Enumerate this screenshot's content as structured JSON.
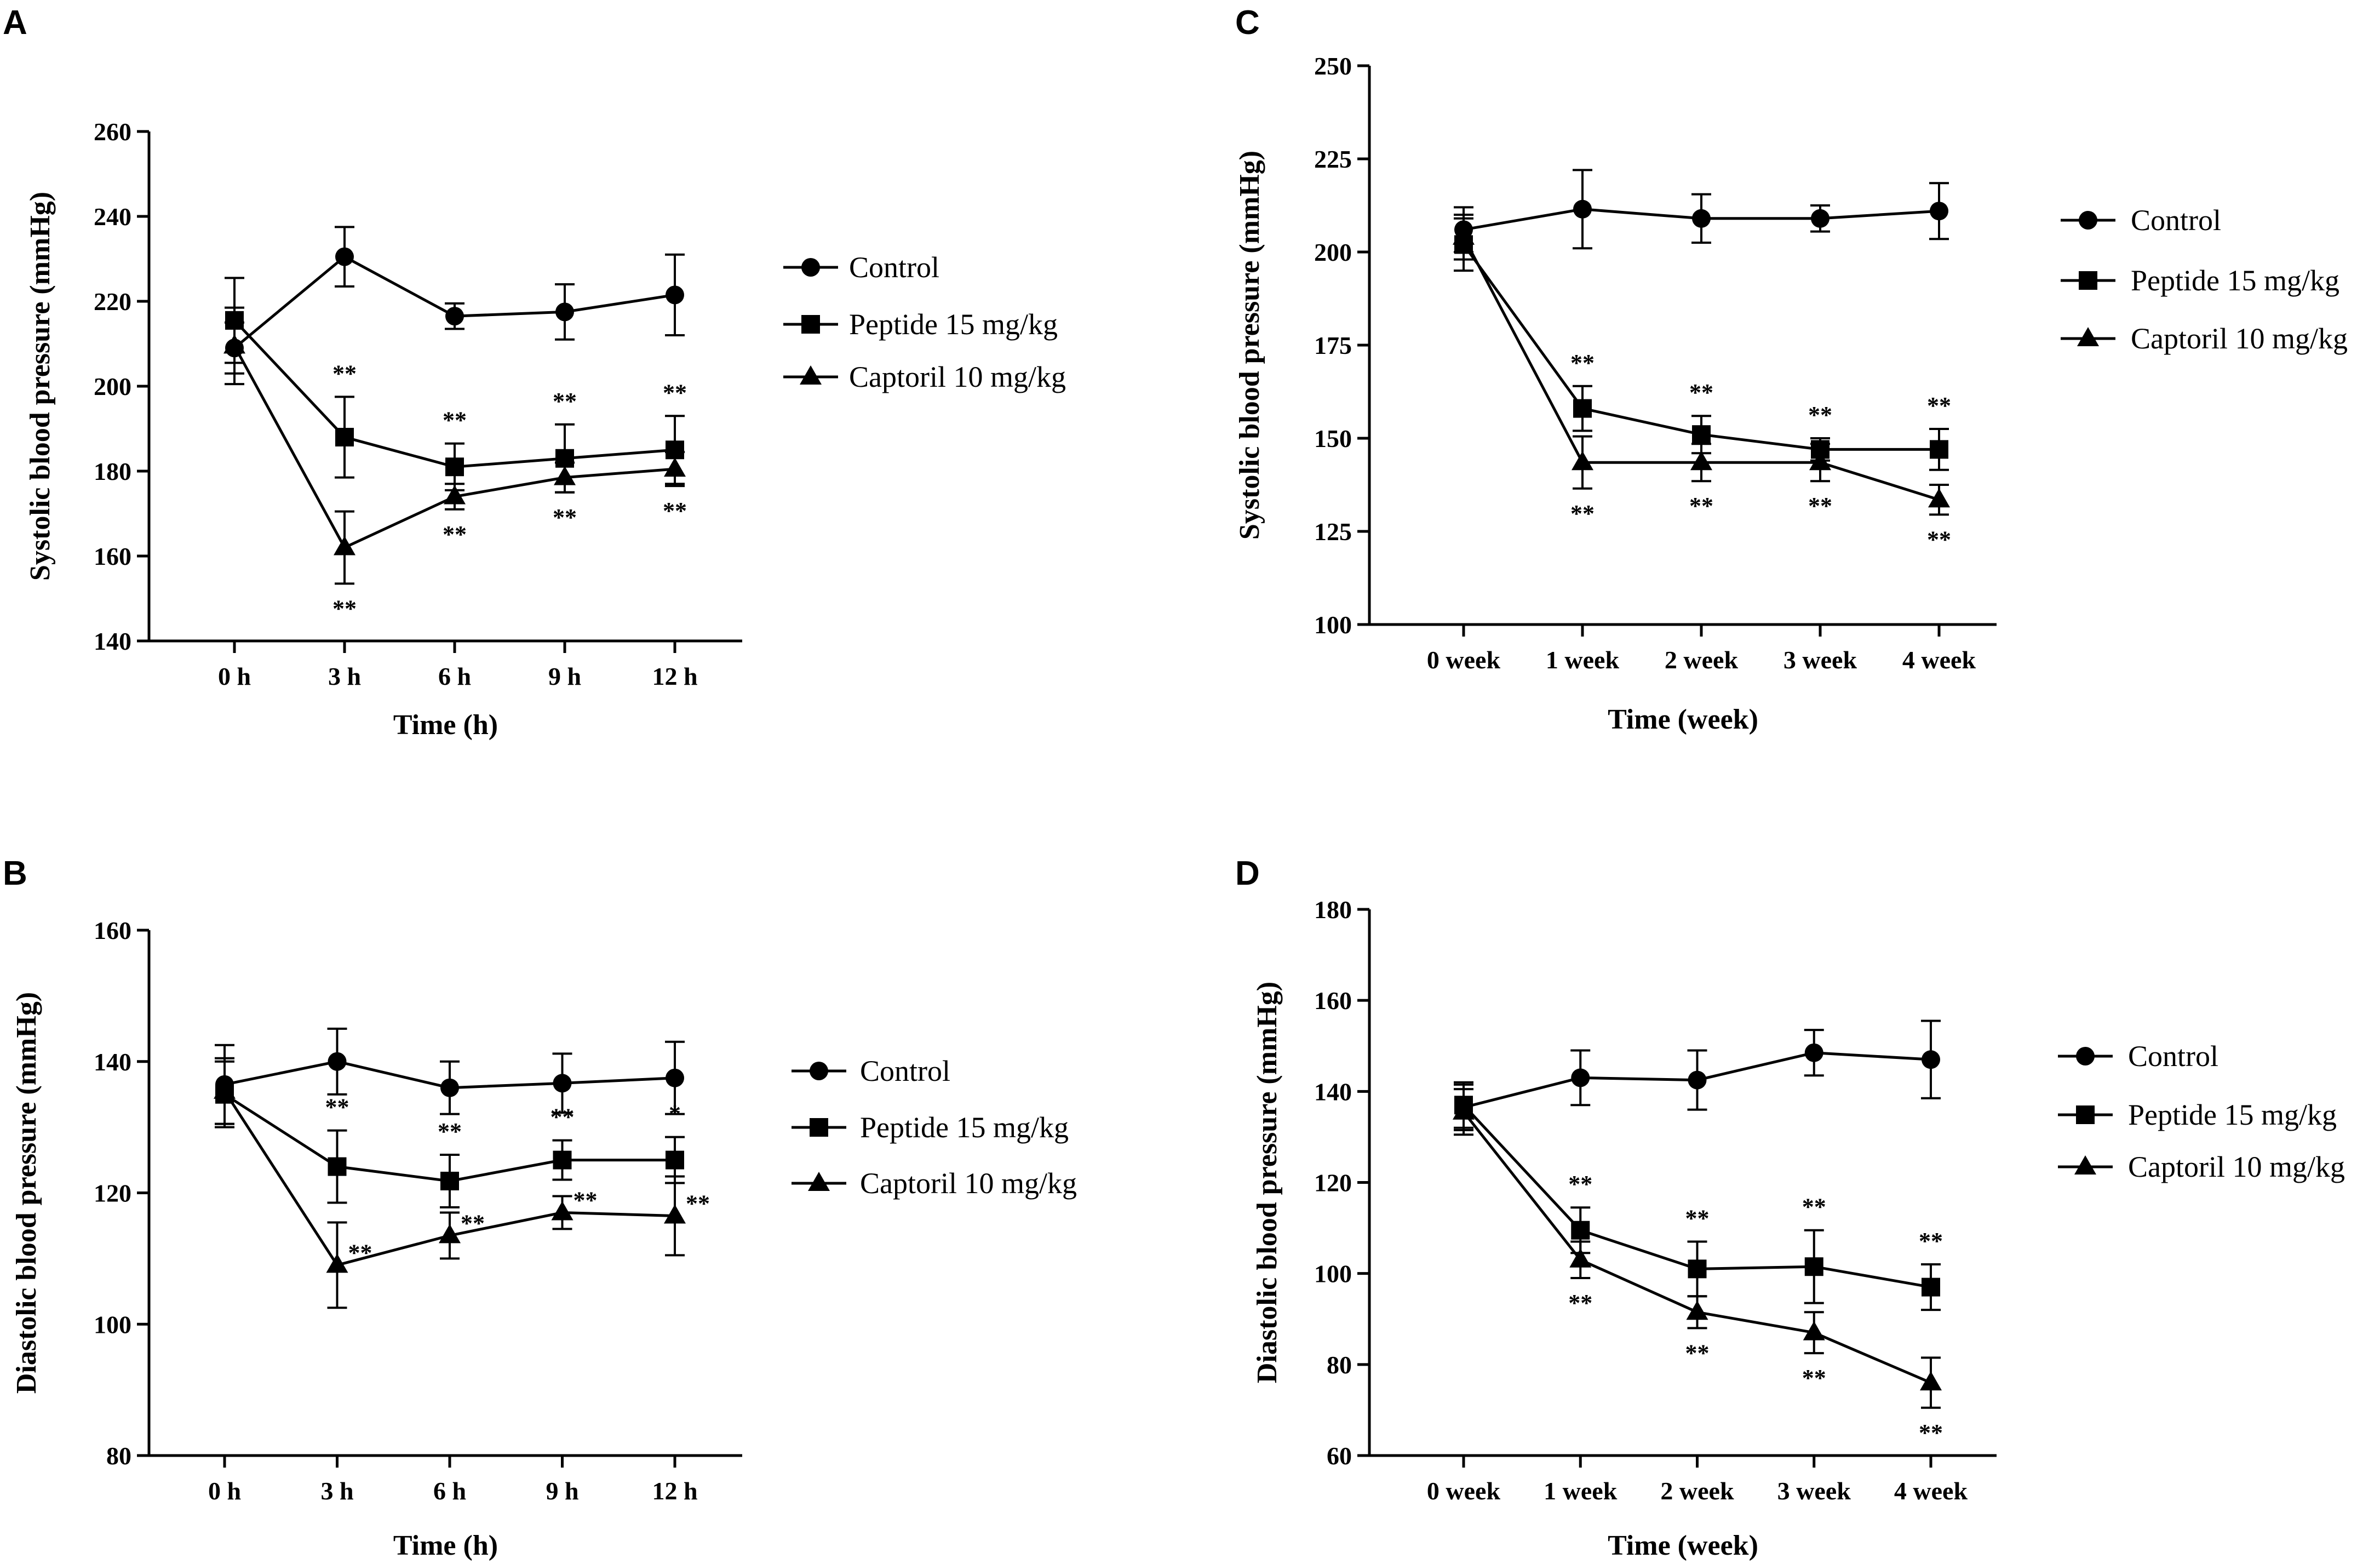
{
  "chart_data": [
    {
      "panel": "A",
      "type": "line",
      "xlabel": "Time (h)",
      "ylabel": "Systolic blood pressure  (mmHg)",
      "categories": [
        "0 h",
        "3 h",
        "6 h",
        "9 h",
        "12 h"
      ],
      "ylim": [
        140,
        260
      ],
      "yticks": [
        140,
        160,
        180,
        200,
        220,
        240,
        260
      ],
      "series": [
        {
          "name": "Control",
          "marker": "circle",
          "values": [
            209,
            230.5,
            216.5,
            217.5,
            221.5
          ],
          "errors": [
            6,
            7,
            3,
            6.5,
            9.5
          ],
          "sig": [
            "",
            "",
            "",
            "",
            ""
          ]
        },
        {
          "name": "Peptide 15 mg/kg",
          "marker": "square",
          "values": [
            215.5,
            188,
            181,
            183,
            185
          ],
          "errors": [
            10,
            9.5,
            5.5,
            8,
            8
          ],
          "sig": [
            "",
            "**",
            "**",
            "**",
            "**"
          ]
        },
        {
          "name": "Captoril 10 mg/kg",
          "marker": "triangle",
          "values": [
            209.5,
            162,
            174,
            178.5,
            180.5
          ],
          "errors": [
            9,
            8.5,
            3,
            3.5,
            4
          ],
          "sig": [
            "",
            "**",
            "**",
            "**",
            "**"
          ]
        }
      ]
    },
    {
      "panel": "B",
      "type": "line",
      "xlabel": "Time (h)",
      "ylabel": "Diastolic blood pressure (mmHg)",
      "categories": [
        "0 h",
        "3 h",
        "6 h",
        "9 h",
        "12 h"
      ],
      "ylim": [
        80,
        160
      ],
      "yticks": [
        80,
        100,
        120,
        140,
        160
      ],
      "series": [
        {
          "name": "Control",
          "marker": "circle",
          "values": [
            136.5,
            140,
            136,
            136.7,
            137.5
          ],
          "errors": [
            6,
            5,
            4,
            4.5,
            5.5
          ],
          "sig": [
            "",
            "",
            "",
            "",
            ""
          ]
        },
        {
          "name": "Peptide 15 mg/kg",
          "marker": "square",
          "values": [
            135,
            124,
            121.8,
            125,
            125
          ],
          "errors": [
            5,
            5.5,
            4,
            3,
            3.5
          ],
          "sig": [
            "",
            "**",
            "**",
            "**",
            "*"
          ]
        },
        {
          "name": "Captoril 10 mg/kg",
          "marker": "triangle",
          "values": [
            135.5,
            109,
            113.5,
            117,
            116.5
          ],
          "errors": [
            5,
            6.5,
            3.5,
            2.5,
            6
          ],
          "sig": [
            "",
            "**",
            "**",
            "**",
            "**"
          ]
        }
      ]
    },
    {
      "panel": "C",
      "type": "line",
      "xlabel": "Time (week)",
      "ylabel": "Systolic blood pressure  (mmHg)",
      "categories": [
        "0 week",
        "1 week",
        "2 week",
        "3 week",
        "4 week"
      ],
      "ylim": [
        100,
        250
      ],
      "yticks": [
        100,
        125,
        150,
        175,
        200,
        225,
        250
      ],
      "series": [
        {
          "name": "Control",
          "marker": "circle",
          "values": [
            206,
            211.5,
            209,
            209,
            211
          ],
          "errors": [
            6,
            10.5,
            6.5,
            3.5,
            7.5
          ],
          "sig": [
            "",
            "",
            "",
            "",
            ""
          ]
        },
        {
          "name": "Peptide 15 mg/kg",
          "marker": "square",
          "values": [
            202,
            158,
            151,
            147,
            147
          ],
          "errors": [
            7,
            6,
            5,
            3,
            5.5
          ],
          "sig": [
            "",
            "**",
            "**",
            "**",
            "**"
          ]
        },
        {
          "name": "Captoril 10 mg/kg",
          "marker": "triangle",
          "values": [
            204,
            143.5,
            143.5,
            143.5,
            133.5
          ],
          "errors": [
            6,
            7,
            5,
            5,
            4
          ],
          "sig": [
            "",
            "**",
            "**",
            "**",
            "**"
          ]
        }
      ]
    },
    {
      "panel": "D",
      "type": "line",
      "xlabel": "Time (week)",
      "ylabel": "Diastolic blood pressure (mmHg)",
      "categories": [
        "0 week",
        "1 week",
        "2 week",
        "3 week",
        "4 week"
      ],
      "ylim": [
        60,
        180
      ],
      "yticks": [
        60,
        80,
        100,
        120,
        140,
        160,
        180
      ],
      "series": [
        {
          "name": "Control",
          "marker": "circle",
          "values": [
            136.5,
            143,
            142.5,
            148.5,
            147
          ],
          "errors": [
            5,
            6,
            6.5,
            5,
            8.5
          ],
          "sig": [
            "",
            "",
            "",
            "",
            ""
          ]
        },
        {
          "name": "Peptide 15 mg/kg",
          "marker": "square",
          "values": [
            137,
            109.5,
            101,
            101.5,
            97
          ],
          "errors": [
            5,
            5,
            6,
            8,
            5
          ],
          "sig": [
            "",
            "**",
            "**",
            "**",
            "**"
          ]
        },
        {
          "name": "Captoril 10 mg/kg",
          "marker": "triangle",
          "values": [
            135.5,
            103,
            91.5,
            87,
            76
          ],
          "errors": [
            5,
            4,
            3.5,
            4.5,
            5.5
          ],
          "sig": [
            "",
            "**",
            "**",
            "**",
            "**"
          ]
        }
      ]
    }
  ]
}
